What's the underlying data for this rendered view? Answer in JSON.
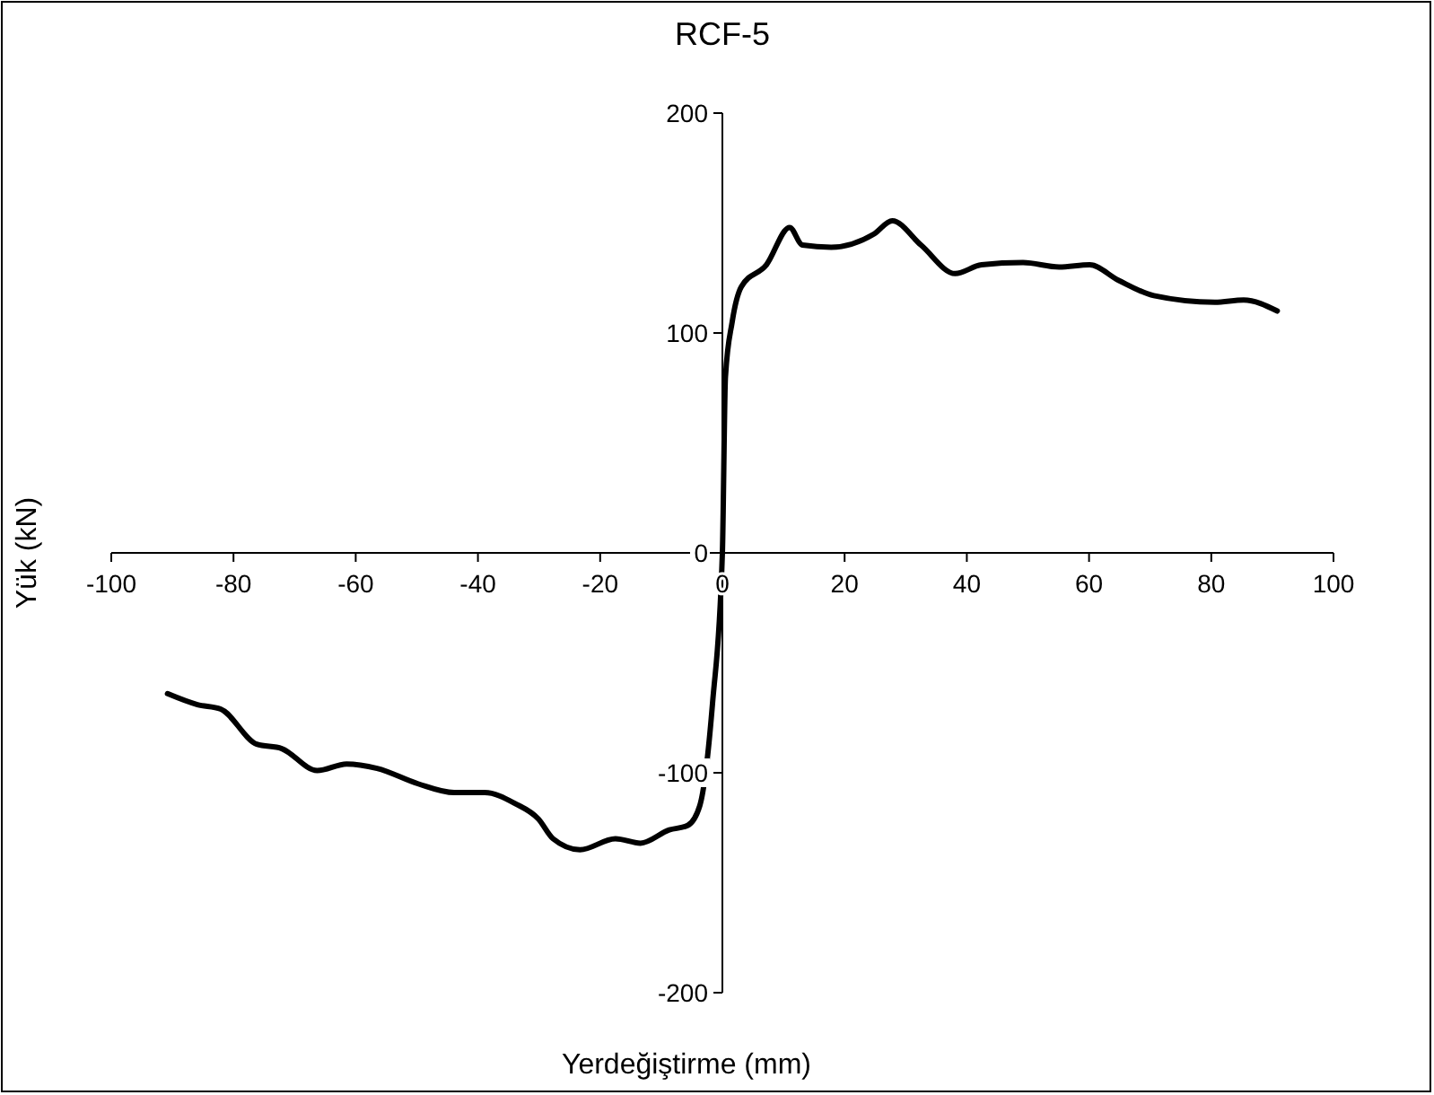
{
  "chart_data": {
    "type": "line",
    "title": "RCF-5",
    "xlabel": "Yerdeğiştirme (mm)",
    "ylabel": "Yük (kN)",
    "xlim": [
      -100,
      100
    ],
    "xticks": [
      -100,
      -80,
      -60,
      -40,
      -20,
      0,
      20,
      40,
      60,
      80,
      100
    ],
    "ylim": [
      -200,
      200
    ],
    "yticks": [
      -200,
      -100,
      0,
      100,
      200
    ],
    "grid": false,
    "marker": "none",
    "line_style": "solid",
    "series": [
      {
        "color": "#000000",
        "x": [
          -90.8,
          -85.9,
          -82.1,
          -76.2,
          -72.1,
          -66.3,
          -61.5,
          -56.5,
          -49.8,
          -43.9,
          -38.9,
          -33.9,
          -30.1,
          -27.7,
          -23.3,
          -17.5,
          -13.4,
          -8.7,
          -5.7,
          -3.7,
          -1.6,
          0,
          0.5,
          1.6,
          3.1,
          7.2,
          11.0,
          13.1,
          17.8,
          24.8,
          27.8,
          32.5,
          38.1,
          42.4,
          49.2,
          55.1,
          60.1,
          64.8,
          70.6,
          80.6,
          85.3,
          90.8
        ],
        "values": [
          -64,
          -69,
          -71,
          -87,
          -89,
          -99,
          -96,
          -98,
          -105,
          -109,
          -109,
          -114,
          -121,
          -130,
          -135,
          -130,
          -132,
          -126,
          -124,
          -115,
          -68,
          0,
          80,
          105,
          121,
          131,
          148,
          140,
          139,
          145,
          151,
          140,
          127,
          131,
          132,
          130,
          131,
          124,
          117,
          114,
          115,
          110
        ]
      }
    ]
  }
}
